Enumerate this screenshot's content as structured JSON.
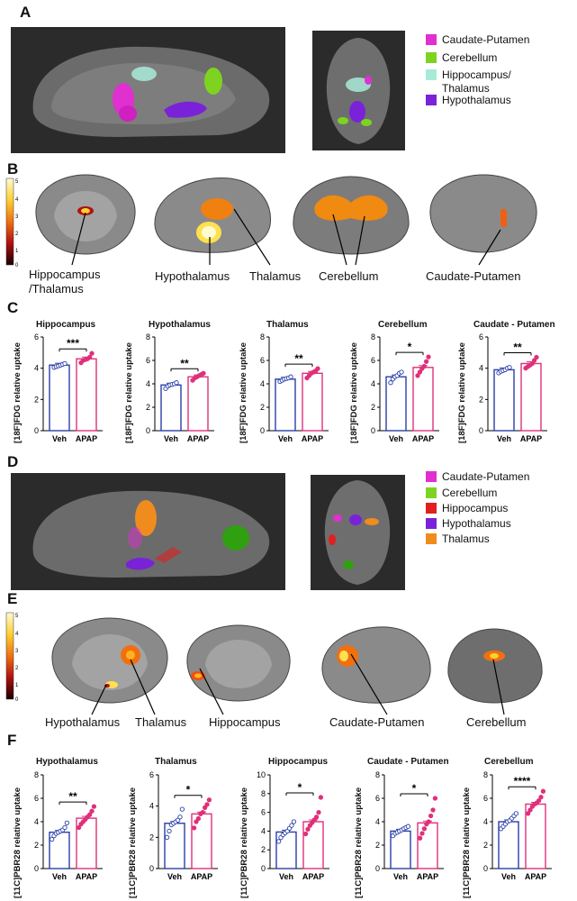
{
  "panels": {
    "A": "A",
    "B": "B",
    "C": "C",
    "D": "D",
    "E": "E",
    "F": "F"
  },
  "legendA": [
    {
      "label": "Caudate-Putamen",
      "color": "#e030d0"
    },
    {
      "label": "Cerebellum",
      "color": "#7ed321"
    },
    {
      "label": "Hippocampus/\nThalamus",
      "color": "#a8ead8"
    },
    {
      "label": "Hypothalamus",
      "color": "#7a22d8"
    }
  ],
  "legendD": [
    {
      "label": "Caudate-Putamen",
      "color": "#e030d0"
    },
    {
      "label": "Cerebellum",
      "color": "#7ed321"
    },
    {
      "label": "Hippocampus",
      "color": "#e02020"
    },
    {
      "label": "Hypothalamus",
      "color": "#7a22d8"
    },
    {
      "label": "Thalamus",
      "color": "#f08c1e"
    }
  ],
  "colorbar": {
    "ticks": [
      "5",
      "4",
      "3",
      "2",
      "1",
      "0"
    ]
  },
  "labelsB": {
    "hippo": "Hippocampus\n/Thalamus",
    "hypo": "Hypothalamus",
    "thal": "Thalamus",
    "cereb": "Cerebellum",
    "caud": "Caudate-Putamen"
  },
  "labelsE": {
    "hypo": "Hypothalamus",
    "thal": "Thalamus",
    "hippo": "Hippocampus",
    "caud": "Caudate-Putamen",
    "cereb": "Cerebellum"
  },
  "chart_data": [
    {
      "type": "bar",
      "title": "Hippocampus",
      "ylabel": "[18F]FDG relative uptake",
      "ylim": [
        0,
        6
      ],
      "yticks": [
        0,
        2,
        4,
        6
      ],
      "categories": [
        "Veh",
        "APAP"
      ],
      "values": [
        4.2,
        4.6
      ],
      "sig": "***",
      "points": [
        [
          4.05,
          4.1,
          4.15,
          4.2,
          4.25,
          4.3
        ],
        [
          4.35,
          4.5,
          4.55,
          4.6,
          4.7,
          4.95
        ]
      ]
    },
    {
      "type": "bar",
      "title": "Hypothalamus",
      "ylabel": "[18F]FDG relative uptake",
      "ylim": [
        0,
        8
      ],
      "yticks": [
        0,
        2,
        4,
        6,
        8
      ],
      "categories": [
        "Veh",
        "APAP"
      ],
      "values": [
        3.9,
        4.6
      ],
      "sig": "**",
      "points": [
        [
          3.6,
          3.8,
          3.9,
          3.95,
          4.0,
          4.1
        ],
        [
          4.3,
          4.5,
          4.6,
          4.7,
          4.8,
          4.9
        ]
      ]
    },
    {
      "type": "bar",
      "title": "Thalamus",
      "ylabel": "[18F]FDG relative uptake",
      "ylim": [
        0,
        8
      ],
      "yticks": [
        0,
        2,
        4,
        6,
        8
      ],
      "categories": [
        "Veh",
        "APAP"
      ],
      "values": [
        4.4,
        4.9
      ],
      "sig": "**",
      "points": [
        [
          4.2,
          4.3,
          4.4,
          4.45,
          4.5,
          4.6
        ],
        [
          4.5,
          4.7,
          4.9,
          5.0,
          5.1,
          5.3
        ]
      ]
    },
    {
      "type": "bar",
      "title": "Cerebellum",
      "ylabel": "[18F]FDG relative uptake",
      "ylim": [
        0,
        8
      ],
      "yticks": [
        0,
        2,
        4,
        6,
        8
      ],
      "categories": [
        "Veh",
        "APAP"
      ],
      "values": [
        4.6,
        5.4
      ],
      "sig": "*",
      "points": [
        [
          4.1,
          4.4,
          4.6,
          4.7,
          4.9,
          5.0
        ],
        [
          4.7,
          5.0,
          5.3,
          5.5,
          5.9,
          6.3
        ]
      ]
    },
    {
      "type": "bar",
      "title": "Caudate - Putamen",
      "ylabel": "[18F]FDG relative uptake",
      "ylim": [
        0,
        6
      ],
      "yticks": [
        0,
        2,
        4,
        6
      ],
      "categories": [
        "Veh",
        "APAP"
      ],
      "values": [
        3.9,
        4.3
      ],
      "sig": "**",
      "points": [
        [
          3.7,
          3.8,
          3.85,
          3.9,
          4.0,
          4.05
        ],
        [
          4.0,
          4.1,
          4.2,
          4.3,
          4.5,
          4.7
        ]
      ]
    },
    {
      "type": "bar",
      "title": "Hypothalamus",
      "ylabel": "[11C]PBR28 relative uptake",
      "ylim": [
        0,
        8
      ],
      "yticks": [
        0,
        2,
        4,
        6,
        8
      ],
      "categories": [
        "Veh",
        "APAP"
      ],
      "values": [
        3.1,
        4.3
      ],
      "sig": "**",
      "points": [
        [
          2.5,
          2.8,
          3.0,
          3.1,
          3.2,
          3.3,
          3.5,
          3.9
        ],
        [
          3.5,
          3.8,
          4.0,
          4.2,
          4.4,
          4.6,
          4.9,
          5.3
        ]
      ]
    },
    {
      "type": "bar",
      "title": "Thalamus",
      "ylabel": "[11C]PBR28 relative uptake",
      "ylim": [
        0,
        6
      ],
      "yticks": [
        0,
        2,
        4,
        6
      ],
      "categories": [
        "Veh",
        "APAP"
      ],
      "values": [
        2.9,
        3.5
      ],
      "sig": "*",
      "points": [
        [
          2.0,
          2.4,
          2.8,
          2.9,
          3.0,
          3.1,
          3.3,
          3.8
        ],
        [
          2.6,
          3.0,
          3.2,
          3.5,
          3.6,
          3.9,
          4.1,
          4.4
        ]
      ]
    },
    {
      "type": "bar",
      "title": "Hippocampus",
      "ylabel": "[11C]PBR28 relative uptake",
      "ylim": [
        0,
        10
      ],
      "yticks": [
        0,
        2,
        4,
        6,
        8,
        10
      ],
      "categories": [
        "Veh",
        "APAP"
      ],
      "values": [
        3.9,
        5.0
      ],
      "sig": "*",
      "points": [
        [
          2.9,
          3.3,
          3.6,
          3.8,
          4.0,
          4.3,
          4.6,
          5.0
        ],
        [
          3.7,
          4.2,
          4.6,
          4.9,
          5.2,
          5.5,
          6.0,
          7.6
        ]
      ]
    },
    {
      "type": "bar",
      "title": "Caudate - Putamen",
      "ylabel": "[11C]PBR28 relative uptake",
      "ylim": [
        0,
        8
      ],
      "yticks": [
        0,
        2,
        4,
        6,
        8
      ],
      "categories": [
        "Veh",
        "APAP"
      ],
      "values": [
        3.2,
        3.9
      ],
      "sig": "*",
      "points": [
        [
          2.8,
          3.0,
          3.1,
          3.2,
          3.3,
          3.4,
          3.5,
          3.6
        ],
        [
          2.6,
          3.0,
          3.4,
          3.8,
          4.0,
          4.5,
          5.0,
          6.0
        ]
      ]
    },
    {
      "type": "bar",
      "title": "Cerebellum",
      "ylabel": "[11C]PBR28 relative uptake",
      "ylim": [
        0,
        8
      ],
      "yticks": [
        0,
        2,
        4,
        6,
        8
      ],
      "categories": [
        "Veh",
        "APAP"
      ],
      "values": [
        4.0,
        5.5
      ],
      "sig": "****",
      "points": [
        [
          3.4,
          3.6,
          3.8,
          4.0,
          4.1,
          4.3,
          4.5,
          4.7
        ],
        [
          4.7,
          5.0,
          5.3,
          5.5,
          5.6,
          5.8,
          6.1,
          6.6
        ]
      ]
    }
  ]
}
